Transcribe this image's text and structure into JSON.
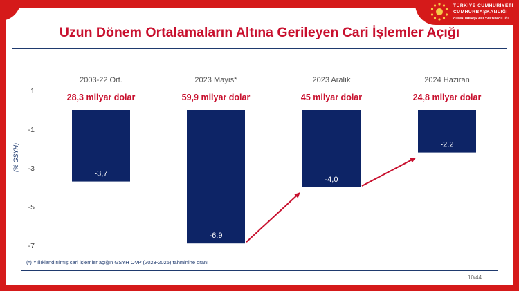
{
  "title": "Uzun Dönem Ortalamaların Altına Gerileyen Cari İşlemler Açığı",
  "logo": {
    "line1": "TÜRKİYE CUMHURİYETİ",
    "line2": "CUMHURBAŞKANLIĞI",
    "line3": "CUMHURBAŞKANI YARDIMCILIĞI"
  },
  "footnote": "(*) Yıllıklandırılmış cari işlemler açığın GSYH OVP (2023-2025) tahminine oranı",
  "page_number": "10/44",
  "colors": {
    "bar": "#0d2466",
    "accent_red": "#c8102e",
    "axis_text": "#444444"
  },
  "chart_data": {
    "type": "bar",
    "categories": [
      "2003-22 Ort.",
      "2023 Mayıs*",
      "2023 Aralık",
      "2024 Haziran"
    ],
    "values": [
      -3.7,
      -6.9,
      -4.0,
      -2.2
    ],
    "value_labels": [
      "-3,7",
      "-6.9",
      "-4,0",
      "-2.2"
    ],
    "amounts": [
      "28,3 milyar dolar",
      "59,9 milyar dolar",
      "45 milyar dolar",
      "24,8 milyar dolar"
    ],
    "ylabel": "(% GSYH)",
    "yticks": [
      1,
      -1,
      -3,
      -5,
      -7
    ],
    "ylim": [
      -7,
      1
    ],
    "grid": false,
    "arrows": [
      {
        "from_category": 1,
        "to_category": 2
      },
      {
        "from_category": 2,
        "to_category": 3
      }
    ]
  }
}
